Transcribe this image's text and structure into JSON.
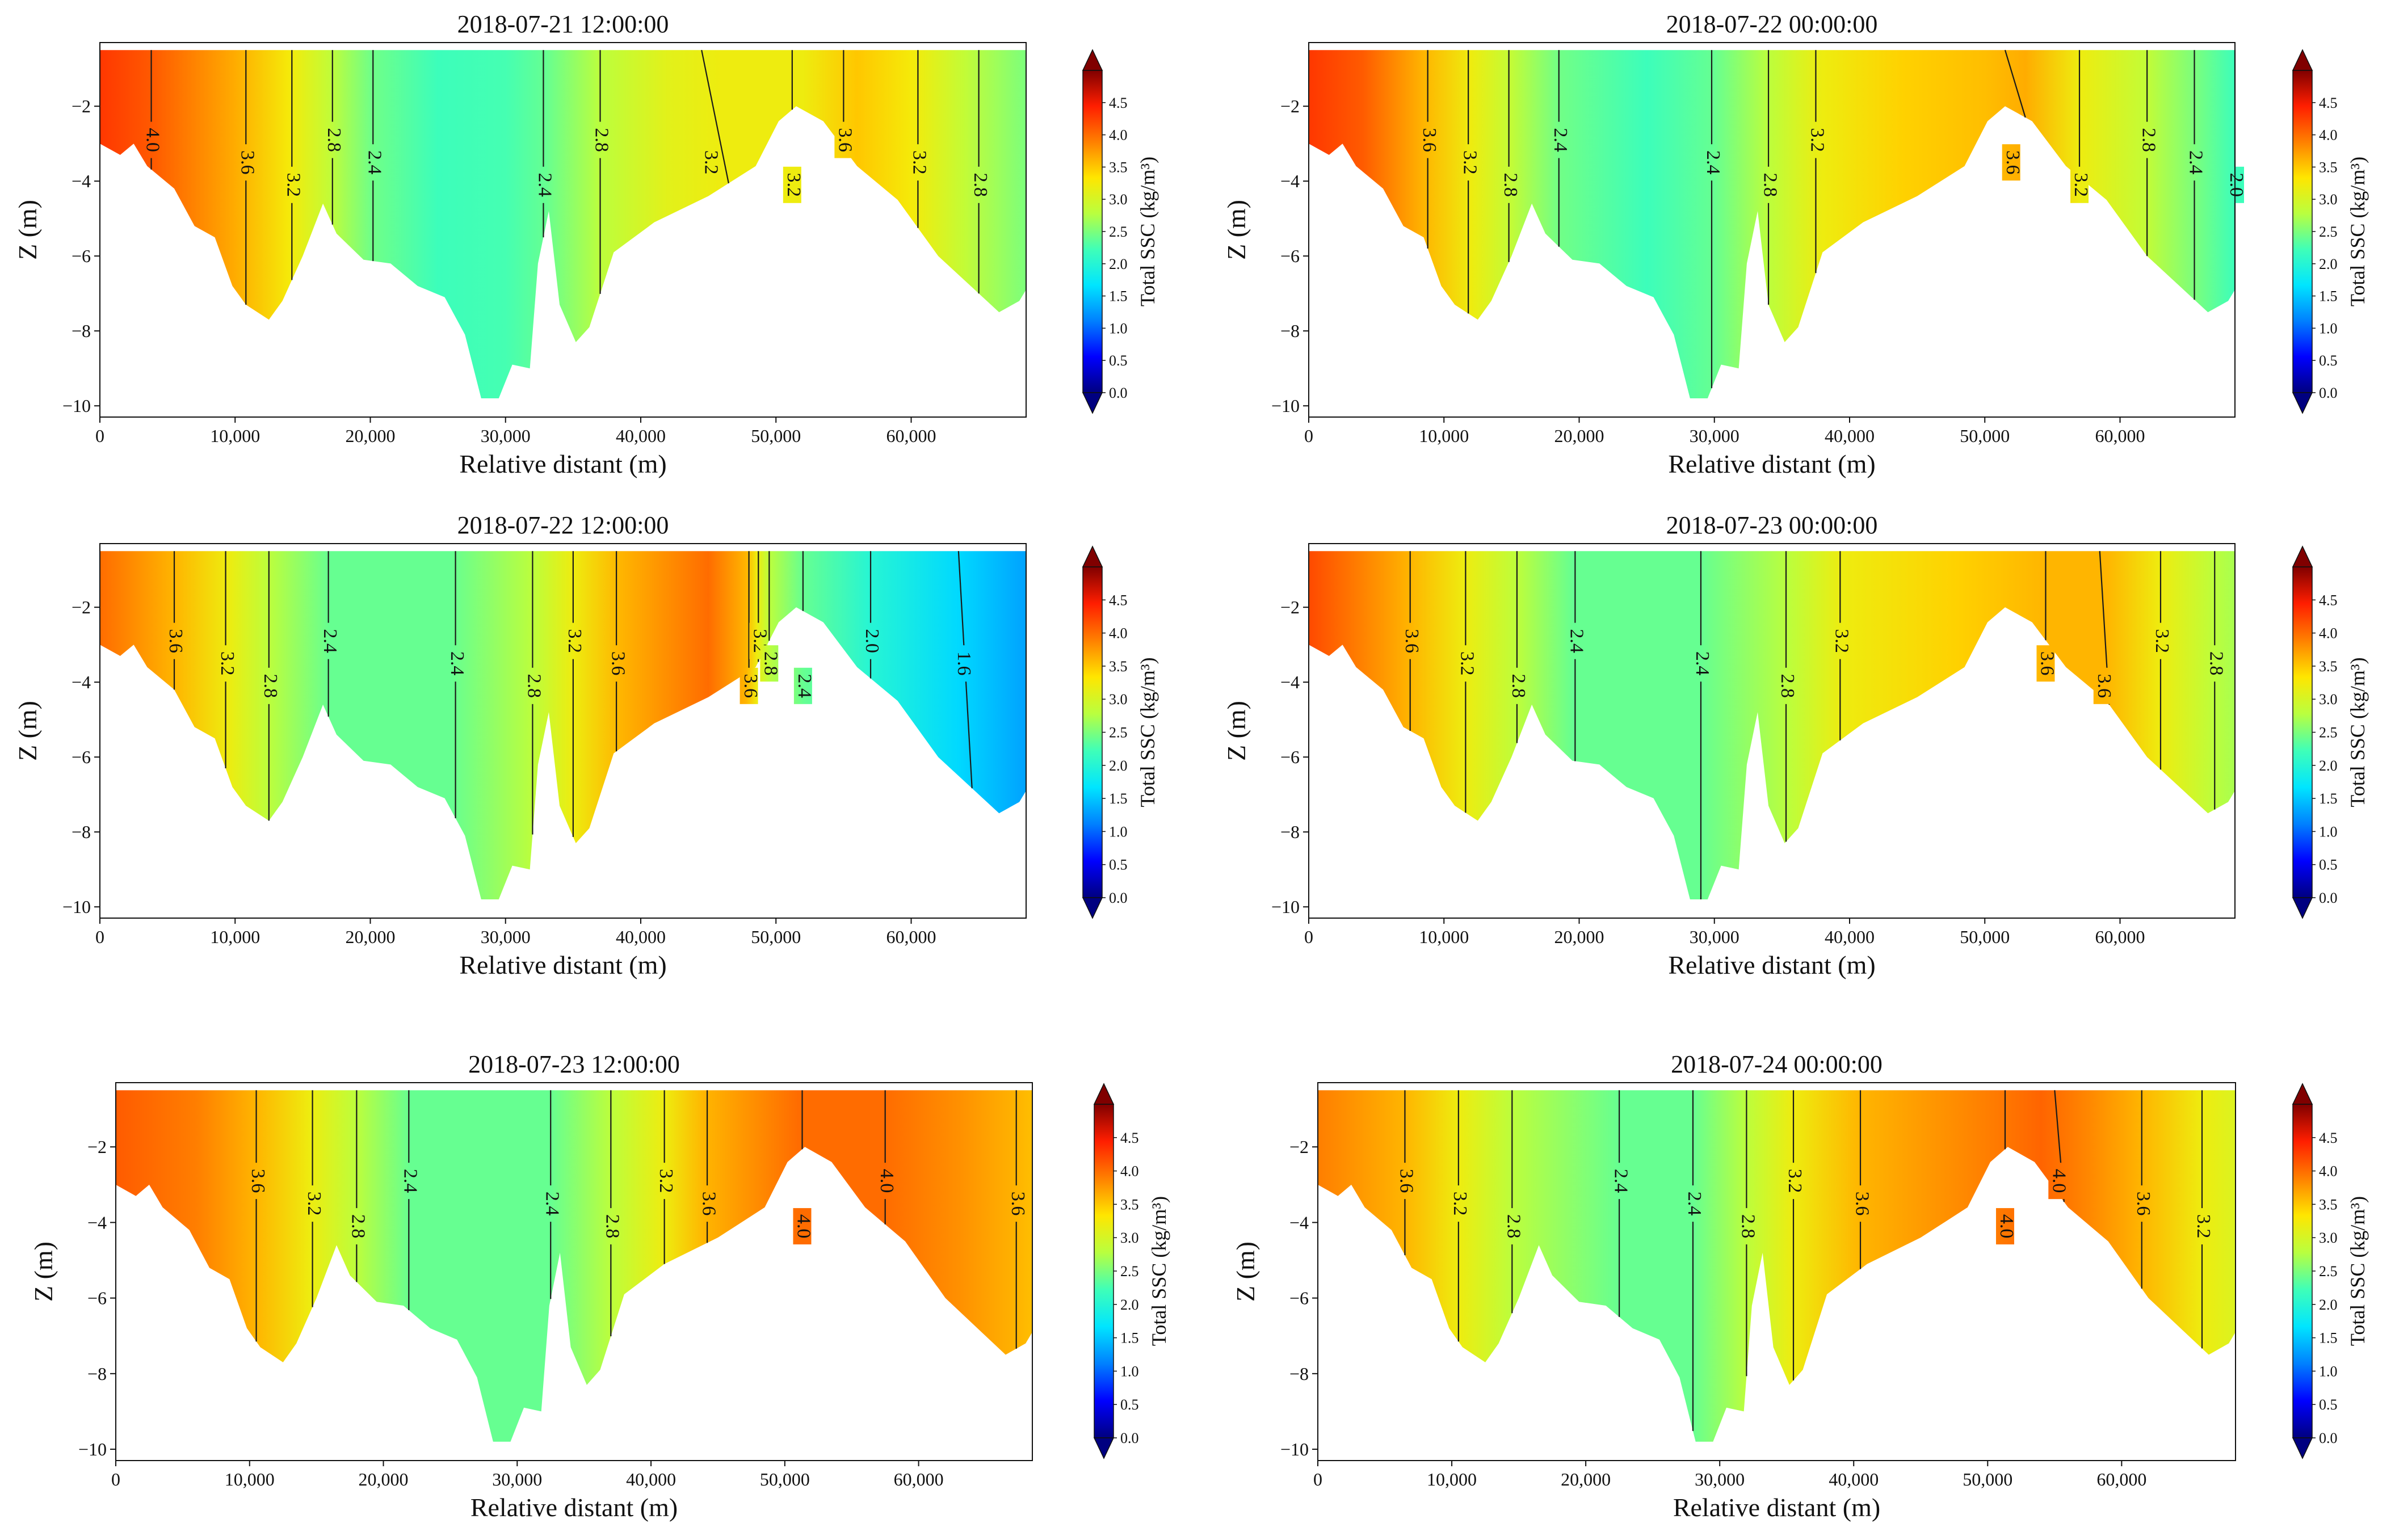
{
  "figure": {
    "x_label": "Relative distant (m)",
    "y_label": "Z (m)"
  },
  "colorbar": {
    "label": "Total SSC (kg/m³)",
    "ticks": [
      "0.0",
      "0.5",
      "1.0",
      "1.5",
      "2.0",
      "2.5",
      "3.0",
      "3.5",
      "4.0",
      "4.5"
    ],
    "range": [
      0,
      5
    ],
    "stops": [
      "#000080",
      "#0000ff",
      "#0080ff",
      "#00e5ff",
      "#3fffb8",
      "#b9ff3f",
      "#ffe600",
      "#ff8000",
      "#ff1e00",
      "#800000"
    ]
  },
  "chart_data": [
    {
      "type": "heatmap",
      "title": "2018-07-21 12:00:00",
      "xlabel": "Relative distant (m)",
      "ylabel": "Z (m)",
      "xlim": [
        0,
        68500
      ],
      "ylim": [
        -10.3,
        -0.3
      ],
      "x_ticks": [
        "0",
        "10,000",
        "20,000",
        "30,000",
        "40,000",
        "50,000",
        "60,000"
      ],
      "y_ticks": [
        "−2",
        "−4",
        "−6",
        "−8",
        "−10"
      ],
      "ssc_profile": [
        [
          0,
          4.3
        ],
        [
          4000,
          4.1
        ],
        [
          10000,
          3.65
        ],
        [
          14000,
          3.25
        ],
        [
          17000,
          2.85
        ],
        [
          20000,
          2.45
        ],
        [
          25000,
          2.2
        ],
        [
          30000,
          2.25
        ],
        [
          33000,
          2.4
        ],
        [
          37000,
          2.8
        ],
        [
          42000,
          3.1
        ],
        [
          46000,
          3.2
        ],
        [
          52000,
          3.2
        ],
        [
          56000,
          3.5
        ],
        [
          60000,
          3.25
        ],
        [
          64000,
          2.85
        ],
        [
          68500,
          2.5
        ]
      ],
      "contours": [
        {
          "label": "4.0",
          "x": [
            3800,
            3800
          ]
        },
        {
          "label": "3.6",
          "x": [
            10800,
            10800
          ]
        },
        {
          "label": "3.2",
          "x": [
            14200,
            14200
          ]
        },
        {
          "label": "2.8",
          "x": [
            17200,
            17200
          ]
        },
        {
          "label": "2.4",
          "x": [
            20200,
            20200
          ]
        },
        {
          "label": "2.4",
          "x": [
            32800,
            32800
          ]
        },
        {
          "label": "2.8",
          "x": [
            37000,
            37000
          ]
        },
        {
          "label": "3.2",
          "x": [
            44500,
            46500
          ]
        },
        {
          "label": "3.2",
          "x": [
            51200,
            51200
          ]
        },
        {
          "label": "3.6",
          "x": [
            55000,
            55000
          ]
        },
        {
          "label": "3.2",
          "x": [
            60500,
            60500
          ]
        },
        {
          "label": "2.8",
          "x": [
            65000,
            65000
          ]
        }
      ]
    },
    {
      "type": "heatmap",
      "title": "2018-07-22 00:00:00",
      "xlabel": "Relative distant (m)",
      "ylabel": "Z (m)",
      "xlim": [
        0,
        68500
      ],
      "ylim": [
        -10.3,
        -0.3
      ],
      "x_ticks": [
        "0",
        "10,000",
        "20,000",
        "30,000",
        "40,000",
        "50,000",
        "60,000"
      ],
      "y_ticks": [
        "−2",
        "−4",
        "−6",
        "−8",
        "−10"
      ],
      "ssc_profile": [
        [
          0,
          4.3
        ],
        [
          4000,
          4.1
        ],
        [
          8500,
          3.6
        ],
        [
          12000,
          3.2
        ],
        [
          15000,
          2.85
        ],
        [
          18500,
          2.45
        ],
        [
          25000,
          2.2
        ],
        [
          30000,
          2.4
        ],
        [
          34000,
          2.8
        ],
        [
          38000,
          3.2
        ],
        [
          44000,
          3.45
        ],
        [
          50000,
          3.55
        ],
        [
          53000,
          3.65
        ],
        [
          57000,
          3.2
        ],
        [
          62000,
          2.85
        ],
        [
          66000,
          2.45
        ],
        [
          68500,
          2.2
        ]
      ],
      "contours": [
        {
          "label": "3.6",
          "x": [
            8800,
            8800
          ]
        },
        {
          "label": "3.2",
          "x": [
            11800,
            11800
          ]
        },
        {
          "label": "2.8",
          "x": [
            14800,
            14800
          ]
        },
        {
          "label": "2.4",
          "x": [
            18500,
            18500
          ]
        },
        {
          "label": "2.4",
          "x": [
            29800,
            29800
          ]
        },
        {
          "label": "2.8",
          "x": [
            34000,
            34000
          ]
        },
        {
          "label": "3.2",
          "x": [
            37500,
            37500
          ]
        },
        {
          "label": "3.6",
          "x": [
            51500,
            53000
          ]
        },
        {
          "label": "3.2",
          "x": [
            57000,
            57000
          ]
        },
        {
          "label": "2.8",
          "x": [
            62000,
            62000
          ]
        },
        {
          "label": "2.4",
          "x": [
            65500,
            65500
          ]
        },
        {
          "label": "2.0",
          "x": [
            68500,
            68500
          ]
        }
      ]
    },
    {
      "type": "heatmap",
      "title": "2018-07-22 12:00:00",
      "xlabel": "Relative distant (m)",
      "ylabel": "Z (m)",
      "xlim": [
        0,
        68500
      ],
      "ylim": [
        -10.3,
        -0.3
      ],
      "x_ticks": [
        "0",
        "10,000",
        "20,000",
        "30,000",
        "40,000",
        "50,000",
        "60,000"
      ],
      "y_ticks": [
        "−2",
        "−4",
        "−6",
        "−8",
        "−10"
      ],
      "ssc_profile": [
        [
          0,
          4.0
        ],
        [
          5500,
          3.6
        ],
        [
          9500,
          3.2
        ],
        [
          12500,
          2.8
        ],
        [
          17000,
          2.4
        ],
        [
          26000,
          2.4
        ],
        [
          32000,
          2.8
        ],
        [
          35000,
          3.2
        ],
        [
          38500,
          3.6
        ],
        [
          45000,
          4.0
        ],
        [
          47800,
          3.6
        ],
        [
          48600,
          3.2
        ],
        [
          49500,
          2.8
        ],
        [
          52000,
          2.4
        ],
        [
          57000,
          2.0
        ],
        [
          63500,
          1.6
        ],
        [
          68500,
          1.3
        ]
      ],
      "contours": [
        {
          "label": "3.6",
          "x": [
            5500,
            5500
          ]
        },
        {
          "label": "3.2",
          "x": [
            9300,
            9300
          ]
        },
        {
          "label": "2.8",
          "x": [
            12500,
            12500
          ]
        },
        {
          "label": "2.4",
          "x": [
            16900,
            16900
          ]
        },
        {
          "label": "2.4",
          "x": [
            26300,
            26300
          ]
        },
        {
          "label": "2.8",
          "x": [
            32000,
            32000
          ]
        },
        {
          "label": "3.2",
          "x": [
            35000,
            35000
          ]
        },
        {
          "label": "3.6",
          "x": [
            38200,
            38200
          ]
        },
        {
          "label": "3.6",
          "x": [
            48000,
            48000
          ]
        },
        {
          "label": "3.2",
          "x": [
            48700,
            48700
          ]
        },
        {
          "label": "2.8",
          "x": [
            49500,
            49500
          ]
        },
        {
          "label": "2.4",
          "x": [
            52000,
            52000
          ]
        },
        {
          "label": "2.0",
          "x": [
            57000,
            57000
          ]
        },
        {
          "label": "1.6",
          "x": [
            63500,
            64500
          ]
        }
      ]
    },
    {
      "type": "heatmap",
      "title": "2018-07-23 00:00:00",
      "xlabel": "Relative distant (m)",
      "ylabel": "Z (m)",
      "xlim": [
        0,
        68500
      ],
      "ylim": [
        -10.3,
        -0.3
      ],
      "x_ticks": [
        "0",
        "10,000",
        "20,000",
        "30,000",
        "40,000",
        "50,000",
        "60,000"
      ],
      "y_ticks": [
        "−2",
        "−4",
        "−6",
        "−8",
        "−10"
      ],
      "ssc_profile": [
        [
          0,
          4.2
        ],
        [
          7500,
          3.6
        ],
        [
          11500,
          3.2
        ],
        [
          15500,
          2.8
        ],
        [
          19500,
          2.4
        ],
        [
          29000,
          2.4
        ],
        [
          35500,
          2.8
        ],
        [
          39500,
          3.2
        ],
        [
          48000,
          3.45
        ],
        [
          54500,
          3.6
        ],
        [
          59000,
          3.6
        ],
        [
          63000,
          3.2
        ],
        [
          67000,
          2.8
        ],
        [
          68500,
          2.7
        ]
      ],
      "contours": [
        {
          "label": "3.6",
          "x": [
            7500,
            7500
          ]
        },
        {
          "label": "3.2",
          "x": [
            11600,
            11600
          ]
        },
        {
          "label": "2.8",
          "x": [
            15400,
            15400
          ]
        },
        {
          "label": "2.4",
          "x": [
            19700,
            19700
          ]
        },
        {
          "label": "2.4",
          "x": [
            29000,
            29000
          ]
        },
        {
          "label": "2.8",
          "x": [
            35300,
            35300
          ]
        },
        {
          "label": "3.2",
          "x": [
            39300,
            39300
          ]
        },
        {
          "label": "3.6",
          "x": [
            54500,
            54500
          ]
        },
        {
          "label": "3.6",
          "x": [
            58500,
            59200
          ]
        },
        {
          "label": "3.2",
          "x": [
            63000,
            63000
          ]
        },
        {
          "label": "2.8",
          "x": [
            67000,
            67000
          ]
        }
      ]
    },
    {
      "type": "heatmap",
      "title": "2018-07-23 12:00:00",
      "xlabel": "Relative distant (m)",
      "ylabel": "Z (m)",
      "xlim": [
        0,
        68500
      ],
      "ylim": [
        -10.3,
        -0.3
      ],
      "x_ticks": [
        "0",
        "10,000",
        "20,000",
        "30,000",
        "40,000",
        "50,000",
        "60,000"
      ],
      "y_ticks": [
        "−2",
        "−4",
        "−6",
        "−8",
        "−10"
      ],
      "ssc_profile": [
        [
          0,
          4.1
        ],
        [
          6000,
          3.9
        ],
        [
          10500,
          3.6
        ],
        [
          14500,
          3.2
        ],
        [
          18000,
          2.8
        ],
        [
          22000,
          2.4
        ],
        [
          32500,
          2.4
        ],
        [
          37000,
          2.8
        ],
        [
          41000,
          3.2
        ],
        [
          44000,
          3.6
        ],
        [
          51000,
          4.0
        ],
        [
          57500,
          4.0
        ],
        [
          63000,
          3.8
        ],
        [
          67500,
          3.6
        ],
        [
          68500,
          3.55
        ]
      ],
      "contours": [
        {
          "label": "3.6",
          "x": [
            10500,
            10500
          ]
        },
        {
          "label": "3.2",
          "x": [
            14700,
            14700
          ]
        },
        {
          "label": "2.8",
          "x": [
            18000,
            18000
          ]
        },
        {
          "label": "2.4",
          "x": [
            21900,
            21900
          ]
        },
        {
          "label": "2.4",
          "x": [
            32500,
            32500
          ]
        },
        {
          "label": "2.8",
          "x": [
            37000,
            37000
          ]
        },
        {
          "label": "3.2",
          "x": [
            41000,
            41000
          ]
        },
        {
          "label": "3.6",
          "x": [
            44200,
            44200
          ]
        },
        {
          "label": "4.0",
          "x": [
            51300,
            51300
          ]
        },
        {
          "label": "4.0",
          "x": [
            57500,
            57500
          ]
        },
        {
          "label": "3.6",
          "x": [
            67300,
            67300
          ]
        }
      ]
    },
    {
      "type": "heatmap",
      "title": "2018-07-24 00:00:00",
      "xlabel": "Relative distant (m)",
      "ylabel": "Z (m)",
      "xlim": [
        0,
        68500
      ],
      "ylim": [
        -10.3,
        -0.3
      ],
      "x_ticks": [
        "0",
        "10,000",
        "20,000",
        "30,000",
        "40,000",
        "50,000",
        "60,000"
      ],
      "y_ticks": [
        "−2",
        "−4",
        "−6",
        "−8",
        "−10"
      ],
      "ssc_profile": [
        [
          0,
          3.9
        ],
        [
          6500,
          3.6
        ],
        [
          10500,
          3.2
        ],
        [
          14500,
          2.8
        ],
        [
          22500,
          2.4
        ],
        [
          28000,
          2.4
        ],
        [
          32000,
          2.8
        ],
        [
          35500,
          3.2
        ],
        [
          40500,
          3.6
        ],
        [
          47000,
          3.8
        ],
        [
          51500,
          3.95
        ],
        [
          54000,
          4.05
        ],
        [
          57500,
          3.85
        ],
        [
          61500,
          3.6
        ],
        [
          66000,
          3.2
        ],
        [
          68500,
          3.05
        ]
      ],
      "contours": [
        {
          "label": "3.6",
          "x": [
            6500,
            6500
          ]
        },
        {
          "label": "3.2",
          "x": [
            10500,
            10500
          ]
        },
        {
          "label": "2.8",
          "x": [
            14500,
            14500
          ]
        },
        {
          "label": "2.4",
          "x": [
            22500,
            22500
          ]
        },
        {
          "label": "2.4",
          "x": [
            28000,
            28000
          ]
        },
        {
          "label": "2.8",
          "x": [
            32000,
            32000
          ]
        },
        {
          "label": "3.2",
          "x": [
            35500,
            35500
          ]
        },
        {
          "label": "3.6",
          "x": [
            40500,
            40500
          ]
        },
        {
          "label": "4.0",
          "x": [
            51300,
            51300
          ]
        },
        {
          "label": "4.0",
          "x": [
            55000,
            55700
          ]
        },
        {
          "label": "3.6",
          "x": [
            61500,
            61500
          ]
        },
        {
          "label": "3.2",
          "x": [
            66000,
            66000
          ]
        }
      ]
    }
  ]
}
